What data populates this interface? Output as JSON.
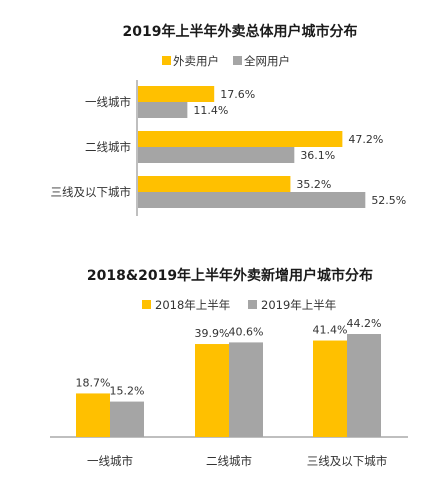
{
  "colors": {
    "accent": "#FFC000",
    "secondary": "#A5A5A5",
    "axis": "#7f7f7f"
  },
  "chart_data": [
    {
      "type": "bar",
      "orientation": "horizontal",
      "title": "2019年上半年外卖总体用户城市分布",
      "categories": [
        "一线城市",
        "二线城市",
        "三线及以下城市"
      ],
      "series": [
        {
          "name": "外卖用户",
          "values": [
            17.6,
            47.2,
            35.2
          ],
          "labels": [
            "17.6%",
            "47.2%",
            "35.2%"
          ],
          "color": "#FFC000"
        },
        {
          "name": "全网用户",
          "values": [
            11.4,
            36.1,
            52.5
          ],
          "labels": [
            "11.4%",
            "36.1%",
            "52.5%"
          ],
          "color": "#A5A5A5"
        }
      ],
      "xlim": [
        0,
        60
      ],
      "legend": "top",
      "grid": false
    },
    {
      "type": "bar",
      "orientation": "vertical",
      "title": "2018&2019年上半年外卖新增用户城市分布",
      "categories": [
        "一线城市",
        "二线城市",
        "三线及以下城市"
      ],
      "series": [
        {
          "name": "2018年上半年",
          "values": [
            18.7,
            39.9,
            41.4
          ],
          "labels": [
            "18.7%",
            "39.9%",
            "41.4%"
          ],
          "color": "#FFC000"
        },
        {
          "name": "2019年上半年",
          "values": [
            15.2,
            40.6,
            44.2
          ],
          "labels": [
            "15.2%",
            "40.6%",
            "44.2%"
          ],
          "color": "#A5A5A5"
        }
      ],
      "ylim": [
        0,
        60
      ],
      "legend": "top",
      "grid": false
    }
  ]
}
